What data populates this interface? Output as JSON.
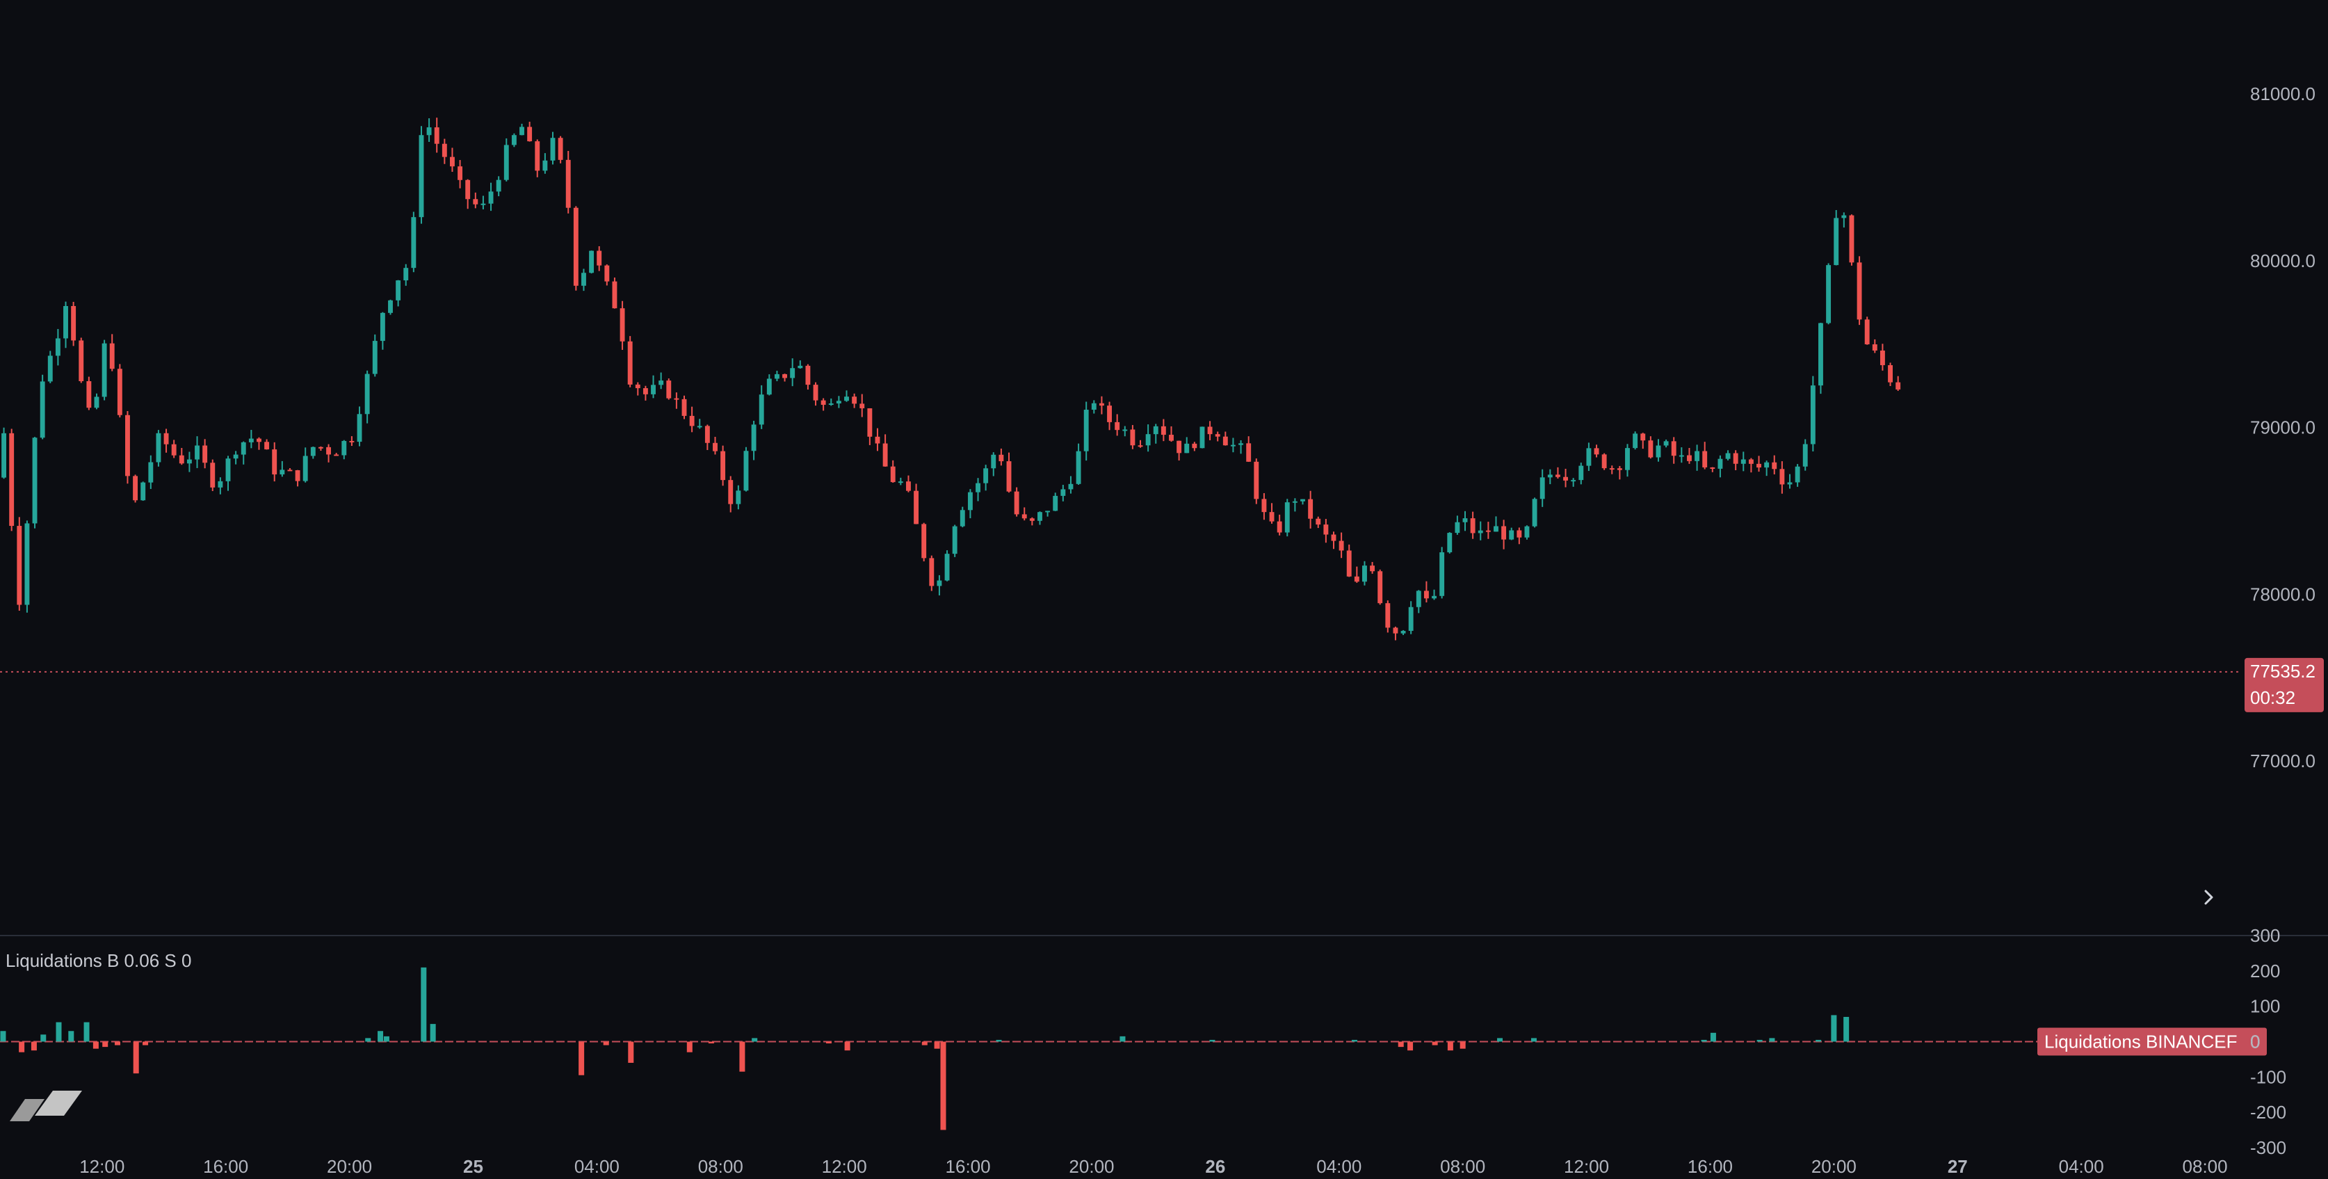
{
  "chart_data": {
    "type": "candlestick",
    "price_axis": {
      "ticks": [
        "81000.0",
        "80000.0",
        "79000.0",
        "78000.0",
        "77000.0"
      ],
      "tick_values": [
        81000,
        80000,
        79000,
        78000,
        77000
      ],
      "ylim": [
        76100,
        81480
      ]
    },
    "last_price": {
      "value": "77535.2",
      "countdown": "00:32",
      "level": 77535.2
    },
    "time_axis": [
      "12:00",
      "16:00",
      "20:00",
      "25",
      "04:00",
      "08:00",
      "12:00",
      "16:00",
      "20:00",
      "26",
      "04:00",
      "08:00",
      "12:00",
      "16:00",
      "20:00",
      "27",
      "04:00",
      "08:00"
    ],
    "time_axis_hours": [
      12,
      16,
      20,
      24,
      28,
      32,
      36,
      40,
      44,
      48,
      52,
      56,
      60,
      64,
      68,
      72,
      76,
      80
    ],
    "xlim_hours": [
      8.7,
      81.1
    ],
    "candle_interval_minutes": 15,
    "price_path": [
      [
        8.7,
        78700
      ],
      [
        8.85,
        79100
      ],
      [
        9.0,
        78900
      ],
      [
        9.3,
        78200
      ],
      [
        9.5,
        77900
      ],
      [
        9.8,
        78700
      ],
      [
        10.2,
        79300
      ],
      [
        10.6,
        79500
      ],
      [
        11.0,
        79800
      ],
      [
        11.4,
        79300
      ],
      [
        11.8,
        79000
      ],
      [
        12.3,
        79600
      ],
      [
        12.8,
        78900
      ],
      [
        13.1,
        78500
      ],
      [
        13.5,
        78700
      ],
      [
        14.0,
        78950
      ],
      [
        14.6,
        78800
      ],
      [
        15.2,
        78850
      ],
      [
        15.8,
        78650
      ],
      [
        16.5,
        78900
      ],
      [
        17.1,
        78950
      ],
      [
        17.7,
        78750
      ],
      [
        18.4,
        78700
      ],
      [
        19.0,
        78900
      ],
      [
        19.6,
        78850
      ],
      [
        20.2,
        78950
      ],
      [
        20.7,
        79300
      ],
      [
        21.2,
        79700
      ],
      [
        21.7,
        79900
      ],
      [
        22.1,
        80000
      ],
      [
        22.5,
        80900
      ],
      [
        22.8,
        80750
      ],
      [
        23.3,
        80600
      ],
      [
        23.8,
        80400
      ],
      [
        24.4,
        80300
      ],
      [
        24.9,
        80500
      ],
      [
        25.3,
        80700
      ],
      [
        25.7,
        80800
      ],
      [
        26.2,
        80550
      ],
      [
        26.7,
        80700
      ],
      [
        27.1,
        80500
      ],
      [
        27.5,
        79800
      ],
      [
        27.9,
        80100
      ],
      [
        28.3,
        79900
      ],
      [
        28.8,
        79700
      ],
      [
        29.2,
        79300
      ],
      [
        29.7,
        79200
      ],
      [
        30.3,
        79250
      ],
      [
        30.9,
        79100
      ],
      [
        31.4,
        79000
      ],
      [
        32.0,
        78800
      ],
      [
        32.6,
        78500
      ],
      [
        33.1,
        79000
      ],
      [
        33.6,
        79250
      ],
      [
        34.1,
        79300
      ],
      [
        34.6,
        79400
      ],
      [
        35.1,
        79200
      ],
      [
        35.6,
        79100
      ],
      [
        36.1,
        79250
      ],
      [
        36.6,
        79150
      ],
      [
        37.1,
        78900
      ],
      [
        37.6,
        78700
      ],
      [
        38.1,
        78650
      ],
      [
        38.6,
        78300
      ],
      [
        39.1,
        78000
      ],
      [
        39.6,
        78400
      ],
      [
        40.1,
        78600
      ],
      [
        40.6,
        78700
      ],
      [
        41.1,
        78900
      ],
      [
        41.6,
        78500
      ],
      [
        42.1,
        78400
      ],
      [
        42.6,
        78500
      ],
      [
        43.1,
        78600
      ],
      [
        43.6,
        78750
      ],
      [
        44.1,
        79200
      ],
      [
        44.6,
        79050
      ],
      [
        45.1,
        79000
      ],
      [
        45.6,
        78900
      ],
      [
        46.1,
        79050
      ],
      [
        46.6,
        78950
      ],
      [
        47.1,
        78850
      ],
      [
        47.6,
        78950
      ],
      [
        48.1,
        79000
      ],
      [
        48.6,
        78900
      ],
      [
        49.1,
        78850
      ],
      [
        49.6,
        78500
      ],
      [
        50.1,
        78350
      ],
      [
        50.6,
        78600
      ],
      [
        51.1,
        78500
      ],
      [
        51.6,
        78350
      ],
      [
        52.1,
        78300
      ],
      [
        52.6,
        78000
      ],
      [
        53.1,
        78250
      ],
      [
        53.6,
        77850
      ],
      [
        54.1,
        77750
      ],
      [
        54.6,
        78050
      ],
      [
        55.1,
        77900
      ],
      [
        55.6,
        78350
      ],
      [
        56.1,
        78450
      ],
      [
        56.6,
        78350
      ],
      [
        57.1,
        78400
      ],
      [
        57.6,
        78350
      ],
      [
        58.1,
        78300
      ],
      [
        58.6,
        78650
      ],
      [
        59.1,
        78750
      ],
      [
        59.6,
        78700
      ],
      [
        60.1,
        78850
      ],
      [
        60.6,
        78800
      ],
      [
        61.1,
        78750
      ],
      [
        61.6,
        78950
      ],
      [
        62.1,
        78850
      ],
      [
        62.6,
        78900
      ],
      [
        63.1,
        78800
      ],
      [
        63.6,
        78850
      ],
      [
        64.1,
        78700
      ],
      [
        64.6,
        78850
      ],
      [
        65.1,
        78800
      ],
      [
        65.6,
        78750
      ],
      [
        66.1,
        78800
      ],
      [
        66.6,
        78650
      ],
      [
        67.1,
        78800
      ],
      [
        67.6,
        79450
      ],
      [
        68.0,
        80000
      ],
      [
        68.3,
        80450
      ],
      [
        68.6,
        80100
      ],
      [
        68.9,
        79700
      ],
      [
        69.2,
        79500
      ],
      [
        69.6,
        79400
      ],
      [
        70.1,
        79250
      ]
    ],
    "liquidations": {
      "title": "Liquidations B 0.06  S 0",
      "ticks": [
        "300",
        "200",
        "100",
        "0",
        "-100",
        "-200",
        "-300"
      ],
      "tick_values": [
        300,
        200,
        100,
        0,
        -100,
        -200,
        -300
      ],
      "ylim": [
        -320,
        320
      ],
      "bars": [
        [
          8.8,
          30
        ],
        [
          9.4,
          -30
        ],
        [
          9.8,
          -25
        ],
        [
          10.1,
          20
        ],
        [
          10.6,
          55
        ],
        [
          11.0,
          30
        ],
        [
          11.5,
          55
        ],
        [
          11.8,
          -20
        ],
        [
          12.1,
          -15
        ],
        [
          12.5,
          -10
        ],
        [
          13.1,
          -90
        ],
        [
          13.4,
          -10
        ],
        [
          20.6,
          10
        ],
        [
          21.0,
          30
        ],
        [
          21.2,
          15
        ],
        [
          22.4,
          210
        ],
        [
          22.7,
          50
        ],
        [
          27.5,
          -95
        ],
        [
          28.3,
          -10
        ],
        [
          29.1,
          -60
        ],
        [
          31.0,
          -30
        ],
        [
          31.7,
          -5
        ],
        [
          32.7,
          -85
        ],
        [
          33.1,
          10
        ],
        [
          35.5,
          -5
        ],
        [
          36.1,
          -25
        ],
        [
          38.6,
          -10
        ],
        [
          39.0,
          -20
        ],
        [
          39.2,
          -250
        ],
        [
          41.0,
          5
        ],
        [
          45.0,
          15
        ],
        [
          47.9,
          5
        ],
        [
          52.5,
          5
        ],
        [
          54.0,
          -15
        ],
        [
          54.3,
          -25
        ],
        [
          55.1,
          -10
        ],
        [
          55.6,
          -25
        ],
        [
          56.0,
          -20
        ],
        [
          57.2,
          10
        ],
        [
          58.3,
          10
        ],
        [
          63.8,
          5
        ],
        [
          64.1,
          25
        ],
        [
          65.6,
          5
        ],
        [
          66.0,
          10
        ],
        [
          67.5,
          5
        ],
        [
          68.0,
          75
        ],
        [
          68.4,
          70
        ]
      ],
      "tag_label": "Liquidations BINANCEF",
      "tag_value": "0"
    },
    "colors": {
      "up": "#26a69a",
      "down": "#ef5350",
      "last_price_bg": "#c54e5a",
      "axis_text": "#b2b5be",
      "background": "#0c0d12"
    }
  },
  "ui": {
    "scroll_icon": "chevron-right-icon",
    "logo_icon": "tradingview-logo-icon"
  }
}
